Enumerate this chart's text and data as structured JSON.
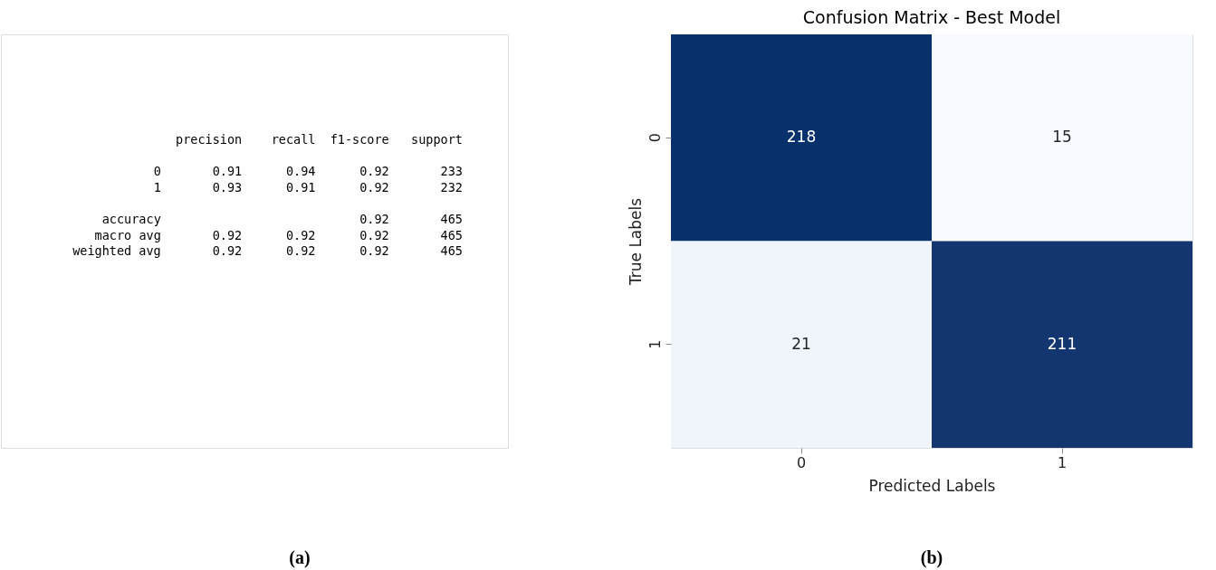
{
  "chart_data": [
    {
      "type": "other",
      "annotations": [
        "precision    recall  f1-score   support",
        "0       0.91      0.94      0.92       233",
        "1       0.93      0.91      0.92       232",
        "accuracy                           0.92       465",
        "macro avg       0.92      0.92      0.92       465",
        "weighted avg       0.92      0.92      0.92       465",
        "(a)"
      ]
    },
    {
      "type": "heatmap",
      "title": "Confusion Matrix - Best Model",
      "xlabel": "Predicted Labels",
      "ylabel": "True Labels",
      "categories": [
        "0",
        "1"
      ],
      "y_categories": [
        "0",
        "1"
      ],
      "cells": [
        [
          218,
          15
        ],
        [
          21,
          211
        ]
      ],
      "data_labels": true,
      "annotations": [
        "(b)"
      ]
    }
  ]
}
